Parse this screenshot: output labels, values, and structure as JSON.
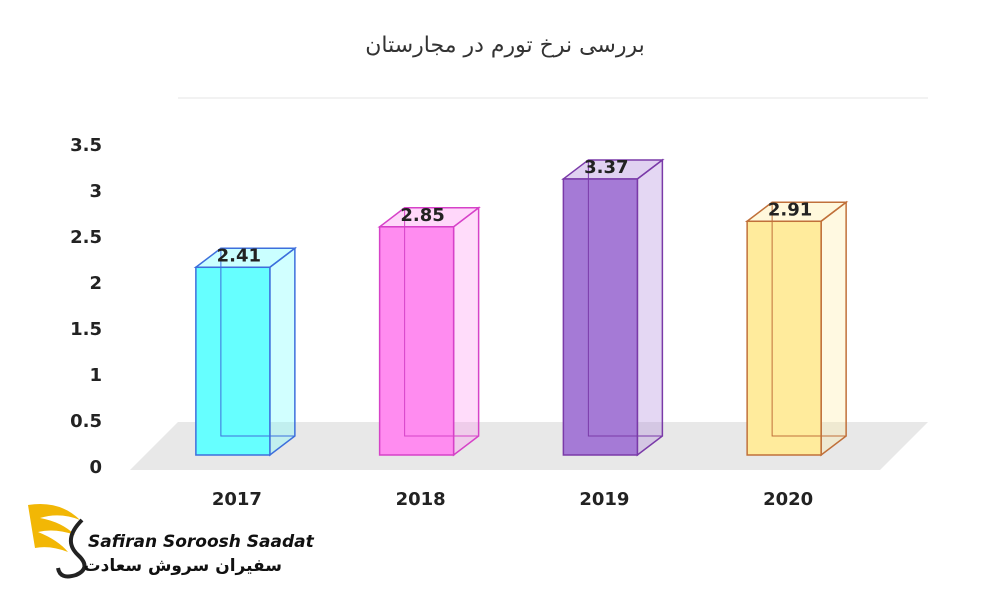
{
  "chart_data": {
    "type": "bar3d",
    "title": "بررسی نرخ تورم در مجارستان",
    "categories": [
      "2017",
      "2018",
      "2019",
      "2020"
    ],
    "values": [
      2.41,
      2.85,
      3.37,
      2.91
    ],
    "colors": [
      "#66ffff",
      "#ff8cf0",
      "#a57ad6",
      "#ffeb9c"
    ],
    "edge_colors": [
      "#3d6fdc",
      "#d642c8",
      "#7a3aa8",
      "#c0703a"
    ],
    "ylim": [
      0,
      3.5
    ],
    "yticks": [
      0,
      0.5,
      1,
      1.5,
      2,
      2.5,
      3,
      3.5
    ],
    "grid": false
  },
  "logo": {
    "name_en": "Safiran Soroosh Saadat",
    "name_fa": "سفیران سروش سعادت"
  }
}
